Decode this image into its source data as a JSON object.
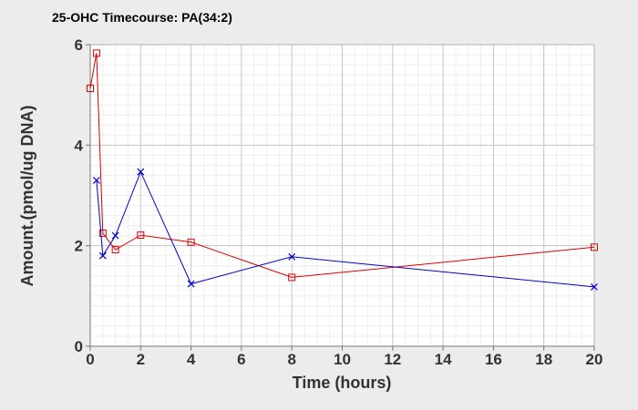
{
  "chart_data": {
    "type": "line",
    "title": "25-OHC Timecourse: PA(34:2)",
    "xlabel": "Time (hours)",
    "ylabel": "Amount.(pmol/ug DNA)",
    "xlim": [
      0,
      20
    ],
    "ylim": [
      0,
      6
    ],
    "x_ticks": [
      "0",
      "2",
      "4",
      "6",
      "8",
      "10",
      "12",
      "14",
      "16",
      "18",
      "20"
    ],
    "y_ticks": [
      "0",
      "2",
      "4",
      "6"
    ],
    "grid": true,
    "legend": "none",
    "series": [
      {
        "color": "#dd0000",
        "marker": "square",
        "x": [
          0,
          0.25,
          0.5,
          1,
          2,
          4,
          8,
          20
        ],
        "y": [
          5.13,
          5.83,
          2.25,
          1.92,
          2.21,
          2.07,
          1.37,
          1.97
        ]
      },
      {
        "color": "#0000cc",
        "marker": "x",
        "x": [
          0.25,
          0.5,
          1,
          2,
          4,
          8,
          20
        ],
        "y": [
          3.3,
          1.8,
          2.2,
          3.47,
          1.24,
          1.78,
          1.18
        ]
      }
    ]
  }
}
